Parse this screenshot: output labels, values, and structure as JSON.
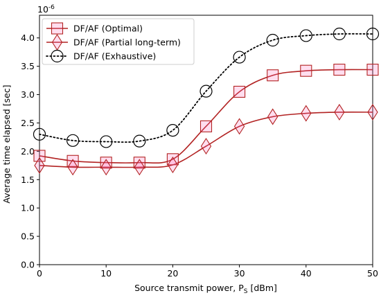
{
  "chart_data": {
    "type": "line",
    "title": "",
    "xlabel": "Source transmit power, P",
    "xlabel_sub": "S",
    "xlabel_unit": " [dBm]",
    "ylabel": "Average time elapsed [sec]",
    "y_multiplier": "10",
    "y_multiplier_exp": "-6",
    "xlim": [
      0,
      50
    ],
    "ylim": [
      0.0,
      4.4
    ],
    "x_ticks": [
      0,
      10,
      20,
      30,
      40,
      50
    ],
    "x_tick_labels": [
      "0",
      "10",
      "20",
      "30",
      "40",
      "50"
    ],
    "y_ticks": [
      0.0,
      0.5,
      1.0,
      1.5,
      2.0,
      2.5,
      3.0,
      3.5,
      4.0
    ],
    "y_tick_labels": [
      "0.0",
      "0.5",
      "1.0",
      "1.5",
      "2.0",
      "2.5",
      "3.0",
      "3.5",
      "4.0"
    ],
    "grid": false,
    "legend_position": "top-left",
    "x": [
      0,
      5,
      10,
      15,
      20,
      25,
      30,
      35,
      40,
      45,
      50
    ],
    "series": [
      {
        "name": "DF/AF (Optimal)",
        "marker": "square",
        "line_style": "solid",
        "color": "#b22222",
        "values": [
          1.92,
          1.83,
          1.8,
          1.8,
          1.86,
          2.44,
          3.05,
          3.34,
          3.42,
          3.44,
          3.44
        ]
      },
      {
        "name": "DF/AF (Partial long-term)",
        "marker": "diamond",
        "line_style": "solid",
        "color": "#b22222",
        "values": [
          1.75,
          1.72,
          1.72,
          1.72,
          1.76,
          2.09,
          2.44,
          2.61,
          2.67,
          2.69,
          2.69
        ]
      },
      {
        "name": "DF/AF (Exhaustive)",
        "marker": "circle",
        "line_style": "dotted",
        "color": "#000000",
        "values": [
          2.3,
          2.19,
          2.17,
          2.18,
          2.37,
          3.06,
          3.66,
          3.96,
          4.04,
          4.07,
          4.07
        ]
      }
    ]
  }
}
